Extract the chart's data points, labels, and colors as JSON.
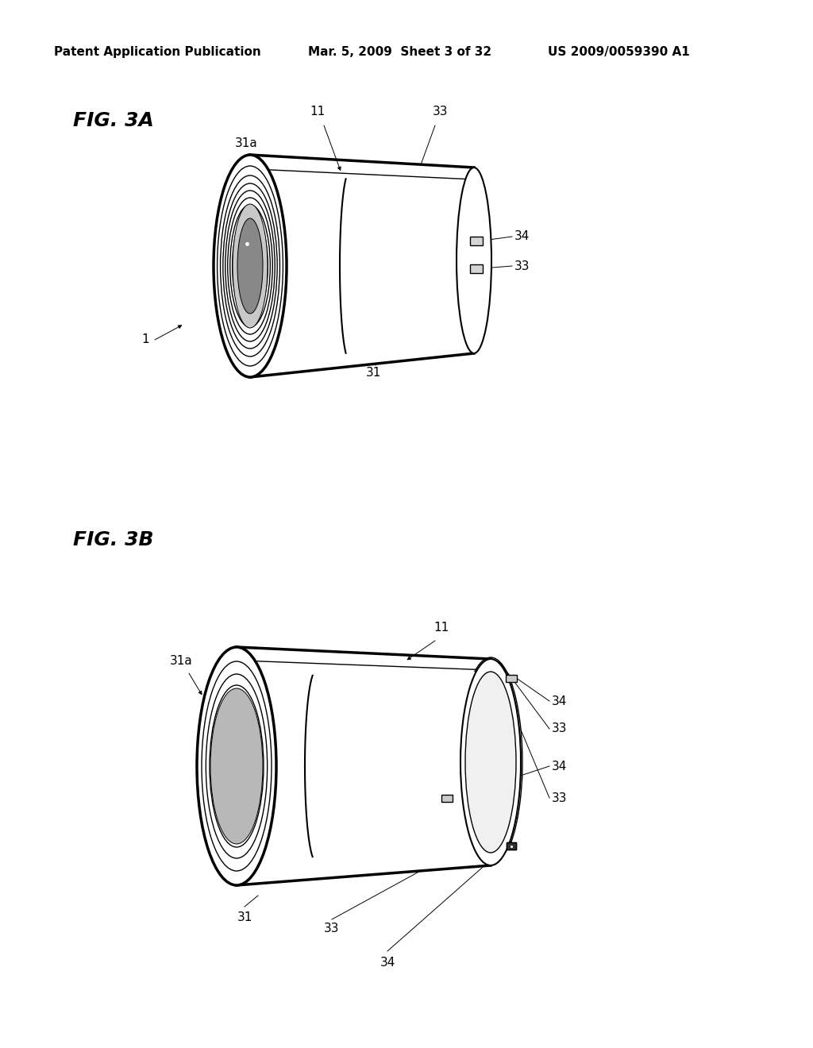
{
  "background_color": "#ffffff",
  "header_left": "Patent Application Publication",
  "header_mid": "Mar. 5, 2009  Sheet 3 of 32",
  "header_right": "US 2009/0059390 A1",
  "fig3a_title": "FIG. 3A",
  "fig3b_title": "FIG. 3B",
  "text_color": "#000000",
  "line_color": "#000000",
  "header_fontsize": 11,
  "fig_title_fontsize": 18,
  "label_fontsize": 11,
  "lw_main": 1.5,
  "lw_thick": 2.5,
  "lw_thin": 1.0,
  "lw_hair": 0.7
}
